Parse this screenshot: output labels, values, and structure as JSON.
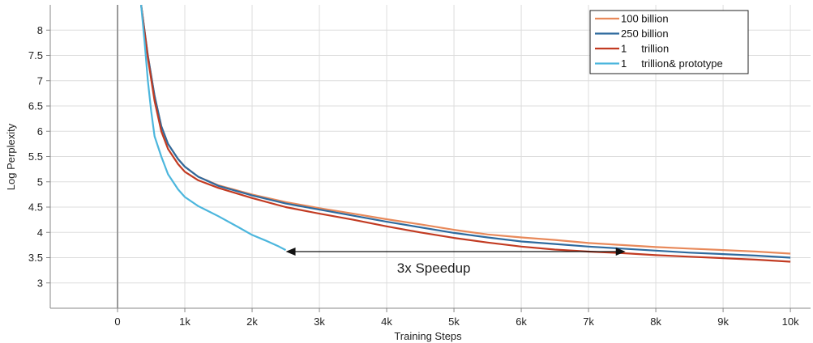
{
  "chart_data": {
    "type": "line",
    "title": "",
    "xlabel": "Training Steps",
    "ylabel": "Log Perplexity",
    "xlim": [
      -1000,
      10300
    ],
    "ylim": [
      2.5,
      8.5
    ],
    "x_ticks": [
      0,
      1000,
      2000,
      3000,
      4000,
      5000,
      6000,
      7000,
      8000,
      9000,
      10000
    ],
    "x_tick_labels": [
      "0",
      "1k",
      "2k",
      "3k",
      "4k",
      "5k",
      "6k",
      "7k",
      "8k",
      "9k",
      "10k"
    ],
    "y_ticks": [
      3,
      3.5,
      4,
      4.5,
      5,
      5.5,
      6,
      6.5,
      7,
      7.5,
      8
    ],
    "y_tick_labels": [
      "3",
      "3.5",
      "4",
      "4.5",
      "5",
      "5.5",
      "6",
      "6.5",
      "7",
      "7.5",
      "8"
    ],
    "grid": true,
    "legend_position": "top-right",
    "series": [
      {
        "name": "100 billion",
        "color": "#e8895a",
        "points": [
          [
            350,
            8.5
          ],
          [
            450,
            7.5
          ],
          [
            550,
            6.7
          ],
          [
            650,
            6.1
          ],
          [
            750,
            5.75
          ],
          [
            900,
            5.45
          ],
          [
            1000,
            5.3
          ],
          [
            1200,
            5.1
          ],
          [
            1500,
            4.93
          ],
          [
            2000,
            4.75
          ],
          [
            2500,
            4.6
          ],
          [
            3000,
            4.48
          ],
          [
            3500,
            4.37
          ],
          [
            4000,
            4.26
          ],
          [
            4500,
            4.16
          ],
          [
            5000,
            4.05
          ],
          [
            5500,
            3.96
          ],
          [
            6000,
            3.9
          ],
          [
            6500,
            3.85
          ],
          [
            7000,
            3.79
          ],
          [
            7500,
            3.75
          ],
          [
            8000,
            3.71
          ],
          [
            8500,
            3.68
          ],
          [
            9000,
            3.65
          ],
          [
            9500,
            3.62
          ],
          [
            10000,
            3.58
          ]
        ]
      },
      {
        "name": "250 billion",
        "color": "#2e6a9e",
        "points": [
          [
            350,
            8.5
          ],
          [
            450,
            7.5
          ],
          [
            550,
            6.7
          ],
          [
            650,
            6.1
          ],
          [
            750,
            5.75
          ],
          [
            900,
            5.45
          ],
          [
            1000,
            5.3
          ],
          [
            1200,
            5.1
          ],
          [
            1500,
            4.92
          ],
          [
            2000,
            4.73
          ],
          [
            2500,
            4.57
          ],
          [
            3000,
            4.45
          ],
          [
            3500,
            4.33
          ],
          [
            4000,
            4.21
          ],
          [
            4500,
            4.1
          ],
          [
            5000,
            3.99
          ],
          [
            5500,
            3.9
          ],
          [
            6000,
            3.82
          ],
          [
            6500,
            3.77
          ],
          [
            7000,
            3.72
          ],
          [
            7500,
            3.68
          ],
          [
            8000,
            3.64
          ],
          [
            8500,
            3.6
          ],
          [
            9000,
            3.57
          ],
          [
            9500,
            3.54
          ],
          [
            10000,
            3.5
          ]
        ]
      },
      {
        "name": "1     trillion",
        "color": "#c23b22",
        "points": [
          [
            350,
            8.5
          ],
          [
            450,
            7.45
          ],
          [
            550,
            6.6
          ],
          [
            650,
            6.0
          ],
          [
            750,
            5.65
          ],
          [
            900,
            5.35
          ],
          [
            1000,
            5.2
          ],
          [
            1200,
            5.03
          ],
          [
            1500,
            4.88
          ],
          [
            2000,
            4.68
          ],
          [
            2500,
            4.5
          ],
          [
            3000,
            4.37
          ],
          [
            3500,
            4.25
          ],
          [
            4000,
            4.12
          ],
          [
            4500,
            4.0
          ],
          [
            5000,
            3.89
          ],
          [
            5500,
            3.8
          ],
          [
            6000,
            3.72
          ],
          [
            6500,
            3.66
          ],
          [
            7000,
            3.62
          ],
          [
            7500,
            3.59
          ],
          [
            8000,
            3.55
          ],
          [
            8500,
            3.52
          ],
          [
            9000,
            3.49
          ],
          [
            9500,
            3.46
          ],
          [
            10000,
            3.42
          ]
        ]
      },
      {
        "name": "1     trillion& prototype",
        "color": "#4cb6dd",
        "points": [
          [
            350,
            8.5
          ],
          [
            400,
            7.8
          ],
          [
            450,
            7.0
          ],
          [
            500,
            6.4
          ],
          [
            550,
            5.9
          ],
          [
            650,
            5.5
          ],
          [
            750,
            5.15
          ],
          [
            900,
            4.85
          ],
          [
            1000,
            4.7
          ],
          [
            1200,
            4.52
          ],
          [
            1500,
            4.32
          ],
          [
            1800,
            4.1
          ],
          [
            2000,
            3.95
          ],
          [
            2200,
            3.84
          ],
          [
            2400,
            3.72
          ],
          [
            2500,
            3.65
          ]
        ]
      }
    ],
    "annotations": [
      {
        "text": "3x Speedup",
        "x": 4700,
        "y": 3.3,
        "arrow_from": [
          2500,
          3.62
        ],
        "arrow_to": [
          7550,
          3.62
        ]
      }
    ]
  }
}
